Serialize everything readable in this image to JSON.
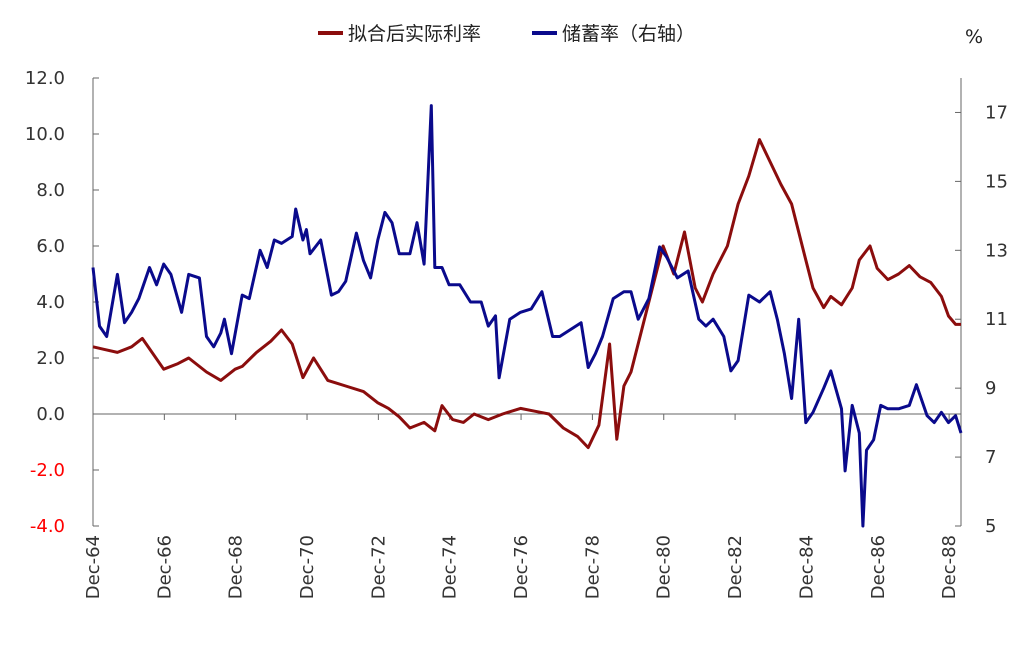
{
  "chart_data": {
    "type": "line",
    "legend": {
      "placement": "top-center",
      "entries": [
        "拟合后实际利率",
        "储蓄率（右轴）"
      ]
    },
    "right_axis_unit": "%",
    "left_axis": {
      "range": [
        -4,
        12
      ],
      "ticks": [
        "12.0",
        "10.0",
        "8.0",
        "6.0",
        "4.0",
        "2.0",
        "0.0",
        "-2.0",
        "-4.0"
      ],
      "negative_color": "#ff0000"
    },
    "right_axis": {
      "range": [
        5,
        18
      ],
      "ticks": [
        "17",
        "15",
        "13",
        "11",
        "9",
        "7",
        "5"
      ]
    },
    "x_axis": {
      "range": [
        1964.917,
        1989.25
      ],
      "tick_labels": [
        "Dec-64",
        "Dec-66",
        "Dec-68",
        "Dec-70",
        "Dec-72",
        "Dec-74",
        "Dec-76",
        "Dec-78",
        "Dec-80",
        "Dec-82",
        "Dec-84",
        "Dec-86",
        "Dec-88"
      ],
      "tick_values": [
        1964.917,
        1966.917,
        1968.917,
        1970.917,
        1972.917,
        1974.917,
        1976.917,
        1978.917,
        1980.917,
        1982.917,
        1984.917,
        1986.917,
        1988.917
      ]
    },
    "grid": false,
    "series": [
      {
        "name": "拟合后实际利率",
        "axis": "left",
        "color": "#8b0d0d",
        "x": [
          1964.917,
          1965.25,
          1965.6,
          1966.0,
          1966.3,
          1966.9,
          1967.3,
          1967.6,
          1968.1,
          1968.5,
          1968.9,
          1969.1,
          1969.5,
          1969.9,
          1970.2,
          1970.5,
          1970.8,
          1971.1,
          1971.5,
          1972.0,
          1972.5,
          1972.9,
          1973.2,
          1973.5,
          1973.8,
          1974.2,
          1974.5,
          1974.7,
          1975.0,
          1975.3,
          1975.6,
          1976.0,
          1976.4,
          1976.9,
          1977.3,
          1977.7,
          1978.1,
          1978.5,
          1978.8,
          1979.1,
          1979.4,
          1979.6,
          1979.8,
          1980.0,
          1980.3,
          1980.6,
          1980.9,
          1981.2,
          1981.5,
          1981.8,
          1982.0,
          1982.3,
          1982.7,
          1983.0,
          1983.3,
          1983.6,
          1983.9,
          1984.2,
          1984.5,
          1984.9,
          1985.1,
          1985.4,
          1985.6,
          1985.9,
          1986.2,
          1986.4,
          1986.7,
          1986.9,
          1987.2,
          1987.5,
          1987.8,
          1988.1,
          1988.4,
          1988.7,
          1988.9,
          1989.1,
          1989.25
        ],
        "y": [
          2.4,
          2.3,
          2.2,
          2.4,
          2.7,
          1.6,
          1.8,
          2.0,
          1.5,
          1.2,
          1.6,
          1.7,
          2.2,
          2.6,
          3.0,
          2.5,
          1.3,
          2.0,
          1.2,
          1.0,
          0.8,
          0.4,
          0.2,
          -0.1,
          -0.5,
          -0.3,
          -0.6,
          0.3,
          -0.2,
          -0.3,
          0.0,
          -0.2,
          0.0,
          0.2,
          0.1,
          0.0,
          -0.5,
          -0.8,
          -1.2,
          -0.4,
          2.5,
          -0.9,
          1.0,
          1.5,
          3.0,
          4.5,
          6.0,
          5.0,
          6.5,
          4.5,
          4.0,
          5.0,
          6.0,
          7.5,
          8.5,
          9.8,
          9.0,
          8.2,
          7.5,
          5.5,
          4.5,
          3.8,
          4.2,
          3.9,
          4.5,
          5.5,
          6.0,
          5.2,
          4.8,
          5.0,
          5.3,
          4.9,
          4.7,
          4.2,
          3.5,
          3.2,
          3.2
        ]
      },
      {
        "name": "储蓄率（右轴）",
        "axis": "right",
        "color": "#0a0a8c",
        "x": [
          1964.917,
          1965.1,
          1965.3,
          1965.6,
          1965.8,
          1966.0,
          1966.2,
          1966.5,
          1966.7,
          1966.9,
          1967.1,
          1967.4,
          1967.6,
          1967.9,
          1968.1,
          1968.3,
          1968.5,
          1968.6,
          1968.8,
          1969.1,
          1969.3,
          1969.6,
          1969.8,
          1970.0,
          1970.2,
          1970.5,
          1970.6,
          1970.8,
          1970.9,
          1971.0,
          1971.3,
          1971.6,
          1971.8,
          1972.0,
          1972.3,
          1972.5,
          1972.7,
          1972.9,
          1973.1,
          1973.3,
          1973.5,
          1973.8,
          1974.0,
          1974.2,
          1974.4,
          1974.5,
          1974.7,
          1974.9,
          1975.2,
          1975.5,
          1975.8,
          1976.0,
          1976.2,
          1976.3,
          1976.6,
          1976.9,
          1977.2,
          1977.5,
          1977.8,
          1978.0,
          1978.3,
          1978.6,
          1978.8,
          1979.0,
          1979.2,
          1979.5,
          1979.8,
          1980.0,
          1980.2,
          1980.5,
          1980.8,
          1981.0,
          1981.3,
          1981.6,
          1981.9,
          1982.1,
          1982.3,
          1982.6,
          1982.8,
          1983.0,
          1983.3,
          1983.6,
          1983.9,
          1984.1,
          1984.3,
          1984.5,
          1984.7,
          1984.9,
          1985.1,
          1985.4,
          1985.6,
          1985.9,
          1986.0,
          1986.2,
          1986.4,
          1986.5,
          1986.6,
          1986.8,
          1987.0,
          1987.2,
          1987.5,
          1987.8,
          1988.0,
          1988.3,
          1988.5,
          1988.7,
          1988.9,
          1989.1,
          1989.25
        ],
        "y": [
          12.5,
          10.8,
          10.5,
          12.3,
          10.9,
          11.2,
          11.6,
          12.5,
          12.0,
          12.6,
          12.3,
          11.2,
          12.3,
          12.2,
          10.5,
          10.2,
          10.6,
          11.0,
          10.0,
          11.7,
          11.6,
          13.0,
          12.5,
          13.3,
          13.2,
          13.4,
          14.2,
          13.3,
          13.6,
          12.9,
          13.3,
          11.7,
          11.8,
          12.1,
          13.5,
          12.7,
          12.2,
          13.3,
          14.1,
          13.8,
          12.9,
          12.9,
          13.8,
          12.6,
          17.2,
          12.5,
          12.5,
          12.0,
          12.0,
          11.5,
          11.5,
          10.8,
          11.1,
          9.3,
          11.0,
          11.2,
          11.3,
          11.8,
          10.5,
          10.5,
          10.7,
          10.9,
          9.6,
          10.0,
          10.5,
          11.6,
          11.8,
          11.8,
          11.0,
          11.6,
          13.1,
          12.8,
          12.2,
          12.4,
          11.0,
          10.8,
          11.0,
          10.5,
          9.5,
          9.8,
          11.7,
          11.5,
          11.8,
          11.0,
          10.0,
          8.7,
          11.0,
          8.0,
          8.3,
          9.0,
          9.5,
          8.4,
          6.6,
          8.5,
          7.7,
          5.0,
          7.2,
          7.5,
          8.5,
          8.4,
          8.4,
          8.5,
          9.1,
          8.2,
          8.0,
          8.3,
          8.0,
          8.2,
          7.7
        ]
      }
    ]
  }
}
